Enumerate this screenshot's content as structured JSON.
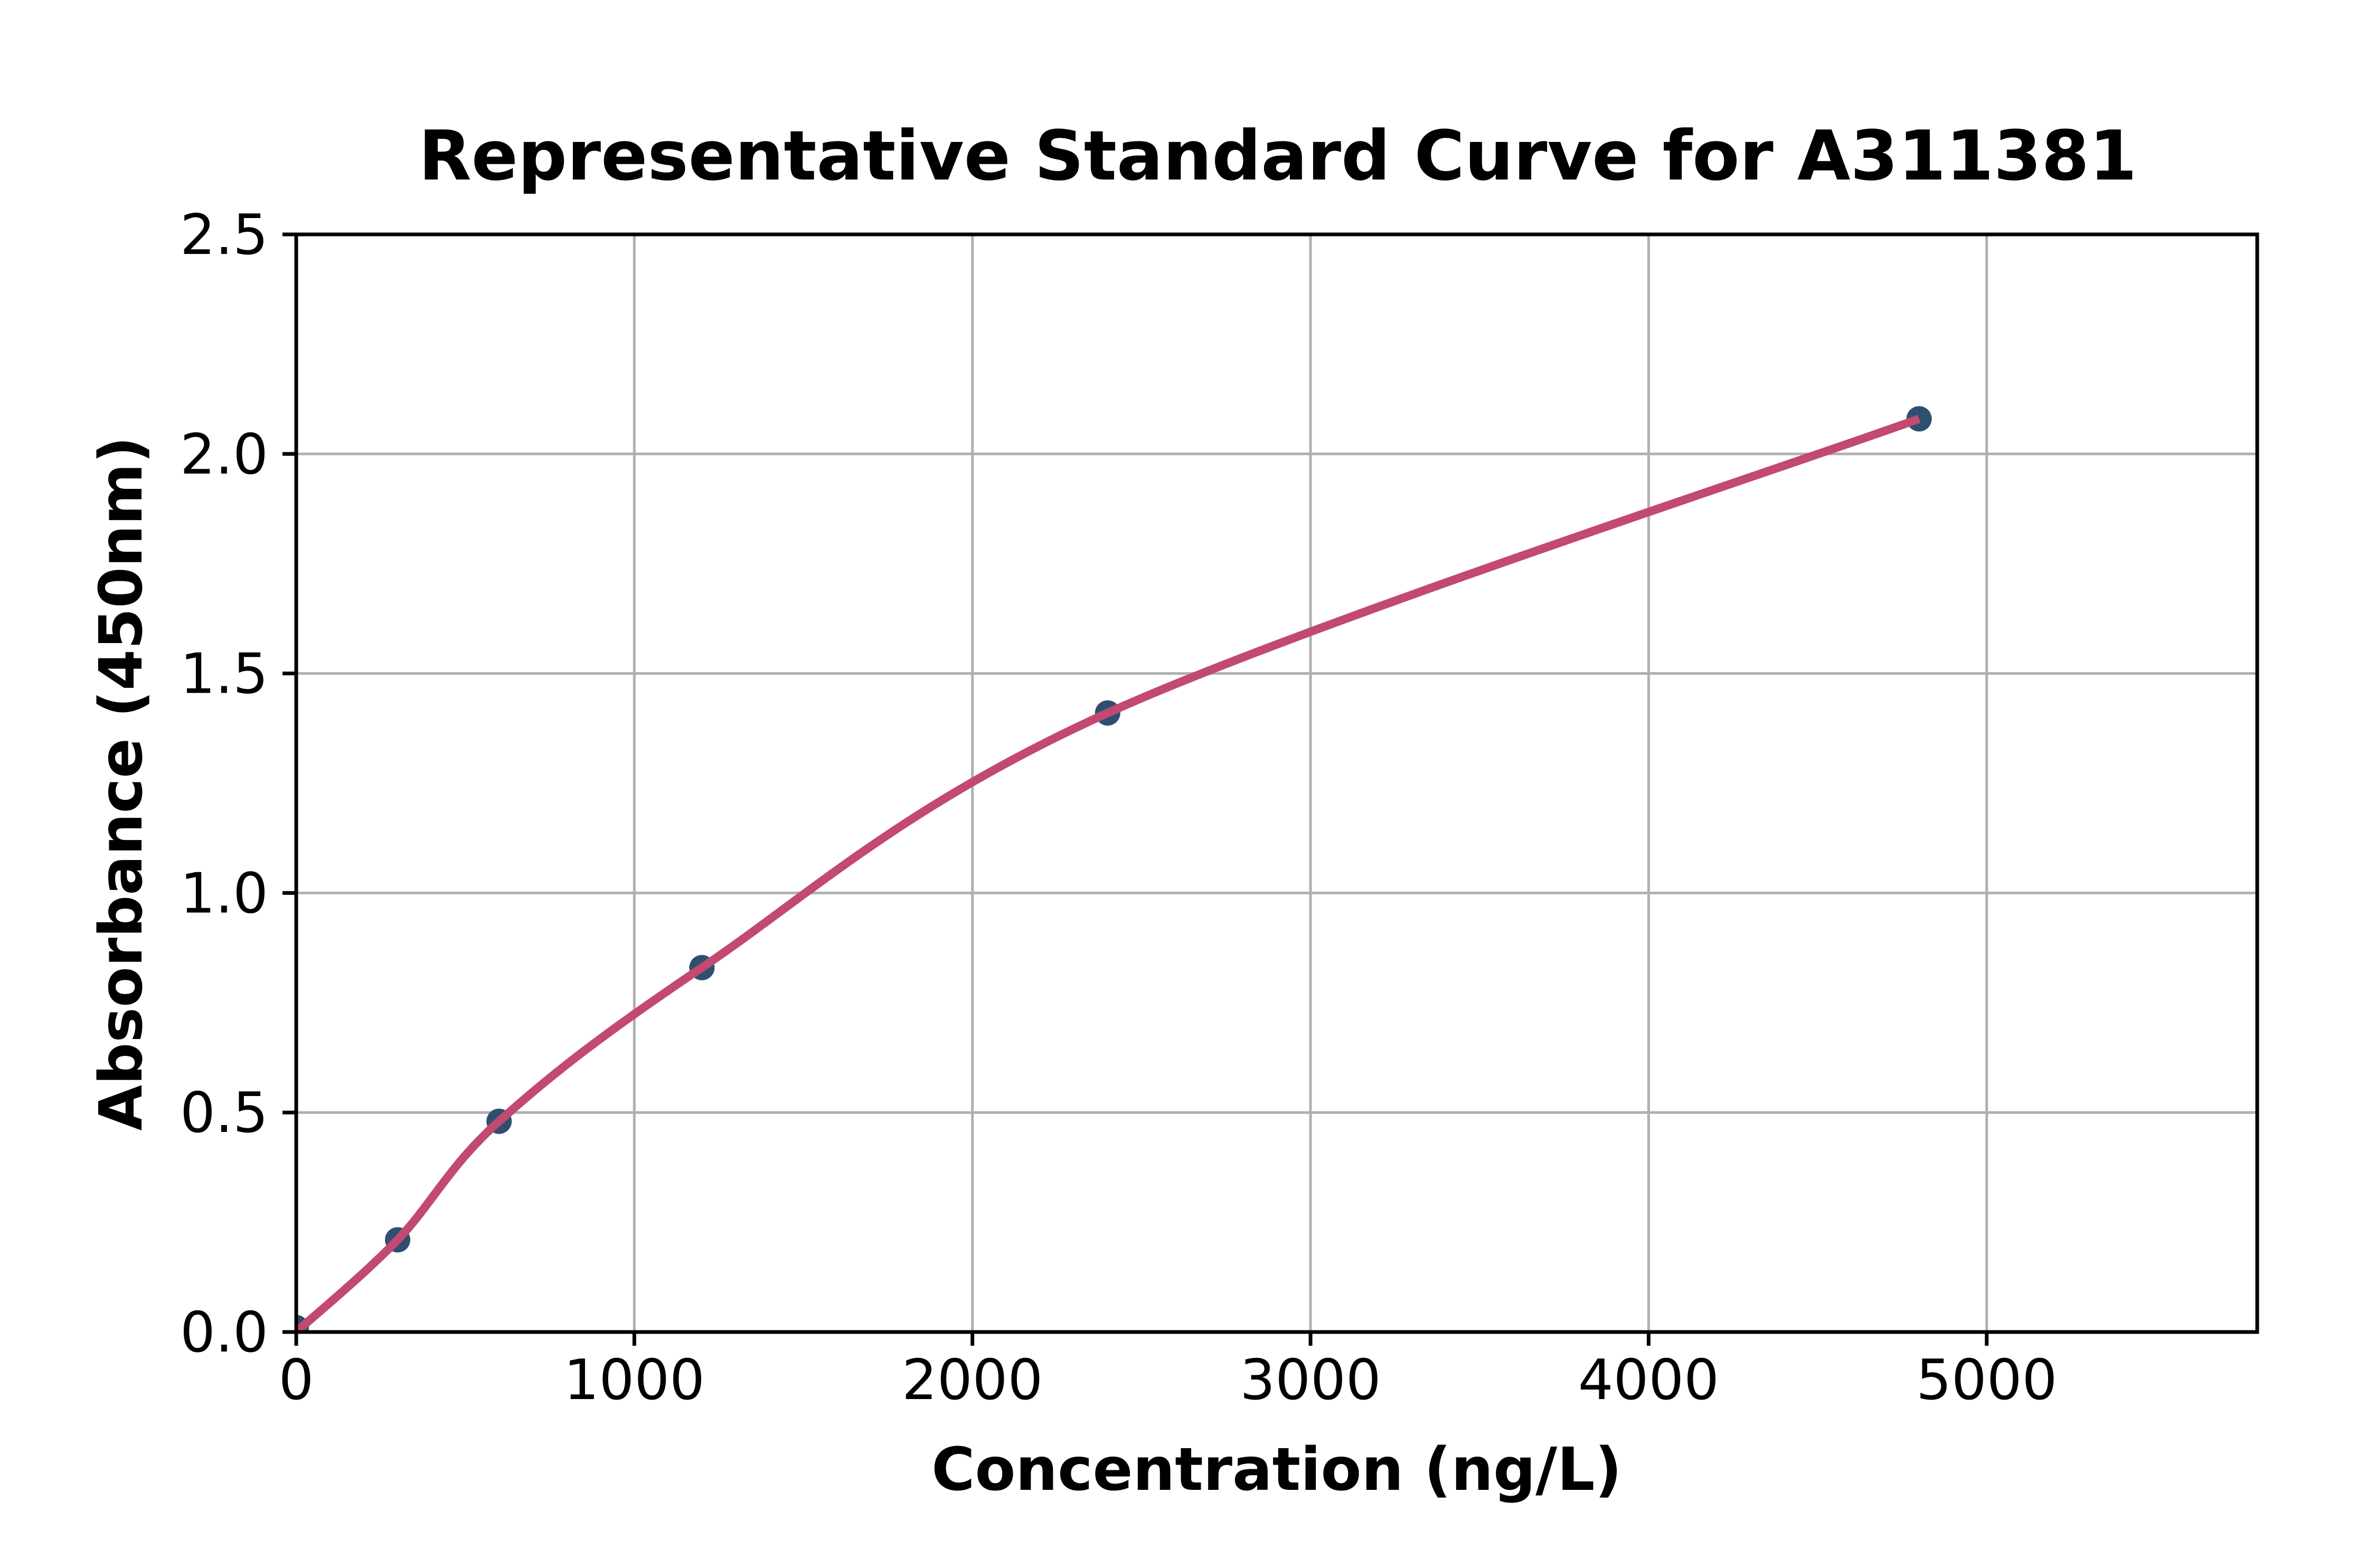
{
  "figure": {
    "background_color": "#ffffff"
  },
  "chart_data": {
    "type": "scatter",
    "title": "Representative Standard Curve for A311381",
    "xlabel": "Concentration (ng/L)",
    "ylabel": "Absorbance (450nm)",
    "xlim": [
      0,
      5800
    ],
    "ylim": [
      0,
      2.5
    ],
    "x_ticks": [
      0,
      1000,
      2000,
      3000,
      4000,
      5000
    ],
    "x_tick_labels": [
      "0",
      "1000",
      "2000",
      "3000",
      "4000",
      "5000"
    ],
    "y_ticks": [
      0.0,
      0.5,
      1.0,
      1.5,
      2.0,
      2.5
    ],
    "y_tick_labels": [
      "0.0",
      "0.5",
      "1.0",
      "1.5",
      "2.0",
      "2.5"
    ],
    "grid": true,
    "legend": false,
    "series": [
      {
        "name": "standard-points",
        "type": "scatter",
        "x": [
          0,
          300,
          600,
          1200,
          2400,
          4800
        ],
        "y": [
          0.01,
          0.21,
          0.48,
          0.83,
          1.41,
          2.08
        ],
        "color": "#2f4f70",
        "marker_radius": 24
      },
      {
        "name": "fitted-curve",
        "type": "line",
        "x": [
          0,
          300,
          600,
          1200,
          2400,
          4800
        ],
        "y": [
          0.0,
          0.21,
          0.48,
          0.83,
          1.41,
          2.08
        ],
        "color": "#c2496f",
        "line_width": 16
      }
    ],
    "colors": {
      "grid": "#b0b0b0",
      "axis": "#000000",
      "tick_labels": "#000000",
      "background": "#ffffff"
    }
  }
}
